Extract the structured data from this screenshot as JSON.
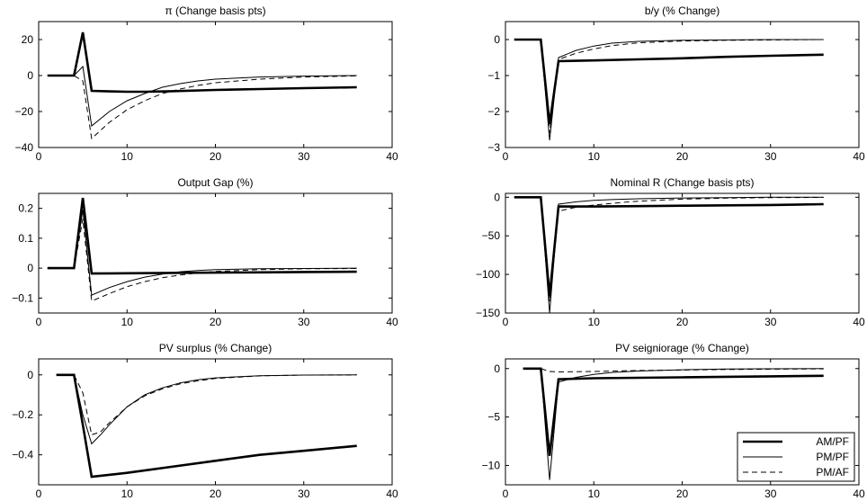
{
  "legend": {
    "placement": "bottom-right of last panel",
    "entries": [
      {
        "label": "AM/PF",
        "style": "thick-solid"
      },
      {
        "label": "PM/PF",
        "style": "thin-solid"
      },
      {
        "label": "PM/AF",
        "style": "dashed"
      }
    ]
  },
  "chart_data": [
    {
      "type": "line",
      "title": "π (Change basis pts)",
      "xlim": [
        0,
        40
      ],
      "ylim": [
        -40,
        30
      ],
      "xticks": [
        0,
        10,
        20,
        30,
        40
      ],
      "yticks": [
        20,
        0,
        -20,
        -40
      ],
      "series": [
        {
          "name": "AM/PF",
          "x": [
            1,
            4,
            5,
            6,
            8,
            10,
            12,
            15,
            20,
            25,
            30,
            36
          ],
          "y": [
            0,
            0,
            24,
            -8.5,
            -8.8,
            -9,
            -9,
            -8.7,
            -8,
            -7.5,
            -7,
            -6.5
          ]
        },
        {
          "name": "PM/PF",
          "x": [
            1,
            4,
            5,
            6,
            8,
            10,
            12,
            14,
            16,
            18,
            20,
            25,
            30,
            36
          ],
          "y": [
            0,
            0,
            5,
            -28,
            -20,
            -14,
            -10,
            -6.5,
            -4.5,
            -3,
            -2,
            -0.8,
            -0.3,
            0
          ]
        },
        {
          "name": "PM/AF",
          "x": [
            1,
            4,
            5,
            6,
            8,
            10,
            12,
            14,
            16,
            18,
            20,
            25,
            30,
            36
          ],
          "y": [
            0,
            0,
            -3,
            -35,
            -26,
            -19,
            -14,
            -10,
            -7.5,
            -5.5,
            -4,
            -2,
            -0.8,
            -0.2
          ]
        }
      ]
    },
    {
      "type": "line",
      "title": "b/y (% Change)",
      "xlim": [
        0,
        40
      ],
      "ylim": [
        -3,
        0.5
      ],
      "xticks": [
        0,
        10,
        20,
        30,
        40
      ],
      "yticks": [
        0,
        -1,
        -2,
        -3
      ],
      "series": [
        {
          "name": "AM/PF",
          "x": [
            1,
            4,
            5,
            6,
            10,
            15,
            20,
            25,
            30,
            36
          ],
          "y": [
            0,
            0,
            -2.35,
            -0.6,
            -0.58,
            -0.55,
            -0.52,
            -0.48,
            -0.45,
            -0.42
          ]
        },
        {
          "name": "PM/PF",
          "x": [
            1,
            4,
            5,
            6,
            8,
            10,
            12,
            15,
            20,
            25,
            30,
            36
          ],
          "y": [
            0,
            0,
            -2.8,
            -0.5,
            -0.3,
            -0.18,
            -0.1,
            -0.05,
            -0.02,
            -0.01,
            0,
            0
          ]
        },
        {
          "name": "PM/AF",
          "x": [
            1,
            4,
            5,
            6,
            8,
            10,
            12,
            15,
            20,
            25,
            30,
            36
          ],
          "y": [
            0,
            0,
            -2.6,
            -0.55,
            -0.38,
            -0.26,
            -0.17,
            -0.09,
            -0.04,
            -0.02,
            -0.01,
            0
          ]
        }
      ]
    },
    {
      "type": "line",
      "title": "Output Gap (%)",
      "xlim": [
        0,
        40
      ],
      "ylim": [
        -0.15,
        0.25
      ],
      "xticks": [
        0,
        10,
        20,
        30,
        40
      ],
      "yticks": [
        0.2,
        0.1,
        0,
        -0.1
      ],
      "series": [
        {
          "name": "AM/PF",
          "x": [
            1,
            4,
            5,
            6,
            10,
            15,
            20,
            25,
            30,
            36
          ],
          "y": [
            0,
            0,
            0.235,
            -0.018,
            -0.017,
            -0.016,
            -0.015,
            -0.014,
            -0.013,
            -0.012
          ]
        },
        {
          "name": "PM/PF",
          "x": [
            1,
            4,
            5,
            6,
            8,
            10,
            12,
            14,
            16,
            18,
            20,
            25,
            30,
            36
          ],
          "y": [
            0,
            0,
            0.195,
            -0.09,
            -0.065,
            -0.045,
            -0.03,
            -0.02,
            -0.012,
            -0.008,
            -0.005,
            -0.002,
            -0.001,
            0
          ]
        },
        {
          "name": "PM/AF",
          "x": [
            1,
            4,
            5,
            6,
            8,
            10,
            12,
            14,
            16,
            18,
            20,
            25,
            30,
            36
          ],
          "y": [
            0,
            0,
            0.165,
            -0.11,
            -0.085,
            -0.062,
            -0.045,
            -0.032,
            -0.023,
            -0.016,
            -0.011,
            -0.005,
            -0.002,
            -0.001
          ]
        }
      ]
    },
    {
      "type": "line",
      "title": "Nominal R (Change basis pts)",
      "xlim": [
        0,
        40
      ],
      "ylim": [
        -150,
        5
      ],
      "xticks": [
        0,
        10,
        20,
        30,
        40
      ],
      "yticks": [
        0,
        -50,
        -100,
        -150
      ],
      "series": [
        {
          "name": "AM/PF",
          "x": [
            1,
            4,
            5,
            6,
            10,
            15,
            20,
            25,
            30,
            36
          ],
          "y": [
            0,
            0,
            -128,
            -12,
            -12,
            -11.5,
            -11,
            -10.5,
            -10,
            -9
          ]
        },
        {
          "name": "PM/PF",
          "x": [
            1,
            4,
            5,
            6,
            8,
            10,
            12,
            15,
            20,
            25,
            30,
            36
          ],
          "y": [
            0,
            0,
            -150,
            -9,
            -6,
            -4,
            -3,
            -2,
            -1,
            -0.5,
            0,
            0
          ]
        },
        {
          "name": "PM/AF",
          "x": [
            1,
            4,
            5,
            6,
            8,
            10,
            12,
            14,
            16,
            18,
            20,
            25,
            30,
            36
          ],
          "y": [
            0,
            0,
            -135,
            -18,
            -13,
            -10,
            -8,
            -6,
            -4.5,
            -3.5,
            -2.5,
            -1.2,
            -0.5,
            -0.2
          ]
        }
      ]
    },
    {
      "type": "line",
      "title": "PV surplus (% Change)",
      "xlim": [
        0,
        40
      ],
      "ylim": [
        -0.55,
        0.08
      ],
      "xticks": [
        0,
        10,
        20,
        30,
        40
      ],
      "yticks": [
        0,
        -0.2,
        -0.4
      ],
      "series": [
        {
          "name": "AM/PF",
          "x": [
            2,
            4,
            5,
            6,
            10,
            15,
            20,
            25,
            30,
            36
          ],
          "y": [
            0,
            0,
            -0.25,
            -0.51,
            -0.49,
            -0.46,
            -0.43,
            -0.4,
            -0.38,
            -0.355
          ]
        },
        {
          "name": "PM/PF",
          "x": [
            2,
            4,
            5,
            6,
            7,
            8,
            10,
            12,
            14,
            16,
            18,
            20,
            25,
            30,
            36
          ],
          "y": [
            0,
            0,
            -0.2,
            -0.345,
            -0.3,
            -0.25,
            -0.16,
            -0.1,
            -0.065,
            -0.04,
            -0.025,
            -0.015,
            -0.004,
            -0.001,
            0
          ]
        },
        {
          "name": "PM/AF",
          "x": [
            2,
            4,
            5,
            6,
            7,
            8,
            10,
            12,
            14,
            16,
            18,
            20,
            25,
            30,
            36
          ],
          "y": [
            0,
            0,
            -0.09,
            -0.3,
            -0.285,
            -0.24,
            -0.16,
            -0.105,
            -0.07,
            -0.045,
            -0.03,
            -0.018,
            -0.005,
            -0.001,
            0
          ]
        }
      ]
    },
    {
      "type": "line",
      "title": "PV seigniorage (% Change)",
      "xlim": [
        0,
        40
      ],
      "ylim": [
        -12,
        1
      ],
      "xticks": [
        0,
        10,
        20,
        30,
        40
      ],
      "yticks": [
        0,
        -5,
        -10
      ],
      "series": [
        {
          "name": "AM/PF",
          "x": [
            2,
            4,
            5,
            6,
            10,
            15,
            20,
            25,
            30,
            36
          ],
          "y": [
            0,
            0,
            -9,
            -1.1,
            -1,
            -0.95,
            -0.9,
            -0.85,
            -0.8,
            -0.75
          ]
        },
        {
          "name": "PM/PF",
          "x": [
            2,
            4,
            5,
            6,
            8,
            10,
            12,
            15,
            20,
            25,
            30,
            36
          ],
          "y": [
            0,
            0,
            -11.5,
            -1.4,
            -0.9,
            -0.6,
            -0.4,
            -0.25,
            -0.12,
            -0.05,
            -0.02,
            0
          ]
        },
        {
          "name": "PM/AF",
          "x": [
            2,
            4,
            5,
            6,
            10,
            15,
            20,
            25,
            30,
            36
          ],
          "y": [
            0,
            0,
            -0.3,
            -0.35,
            -0.3,
            -0.2,
            -0.15,
            -0.1,
            -0.06,
            -0.03
          ]
        }
      ]
    }
  ]
}
